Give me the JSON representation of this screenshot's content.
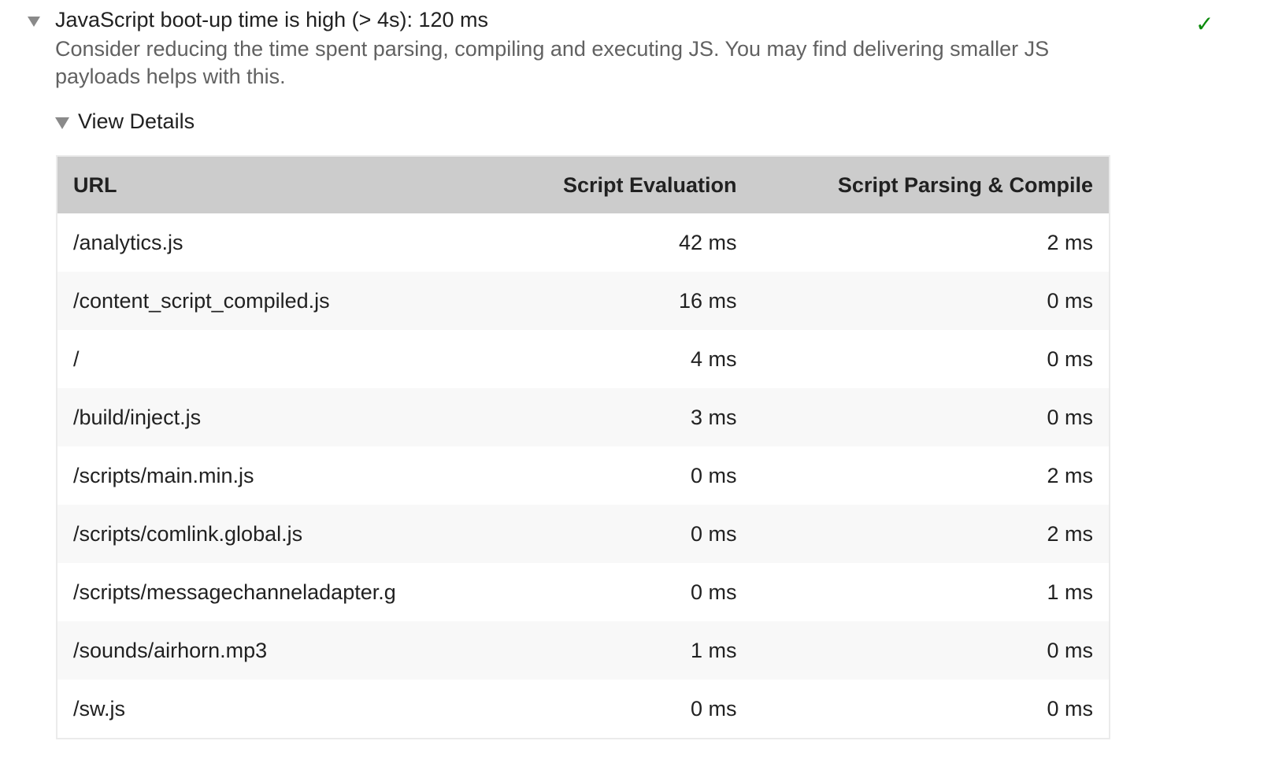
{
  "audit": {
    "title": "JavaScript boot-up time is high (> 4s): 120 ms",
    "description": "Consider reducing the time spent parsing, compiling and executing JS. You may find delivering smaller JS payloads helps with this.",
    "status_icon": "check-icon",
    "status_color": "#0b8a0b",
    "check_glyph": "✓"
  },
  "details": {
    "label": "View Details"
  },
  "table": {
    "headers": [
      "URL",
      "Script Evaluation",
      "Script Parsing & Compile"
    ],
    "rows": [
      [
        "/analytics.js",
        "42 ms",
        "2 ms"
      ],
      [
        "/content_script_compiled.js",
        "16 ms",
        "0 ms"
      ],
      [
        "/",
        "4 ms",
        "0 ms"
      ],
      [
        "/build/inject.js",
        "3 ms",
        "0 ms"
      ],
      [
        "/scripts/main.min.js",
        "0 ms",
        "2 ms"
      ],
      [
        "/scripts/comlink.global.js",
        "0 ms",
        "2 ms"
      ],
      [
        "/scripts/messagechanneladapter.g",
        "0 ms",
        "1 ms"
      ],
      [
        "/sounds/airhorn.mp3",
        "1 ms",
        "0 ms"
      ],
      [
        "/sw.js",
        "0 ms",
        "0 ms"
      ]
    ]
  }
}
